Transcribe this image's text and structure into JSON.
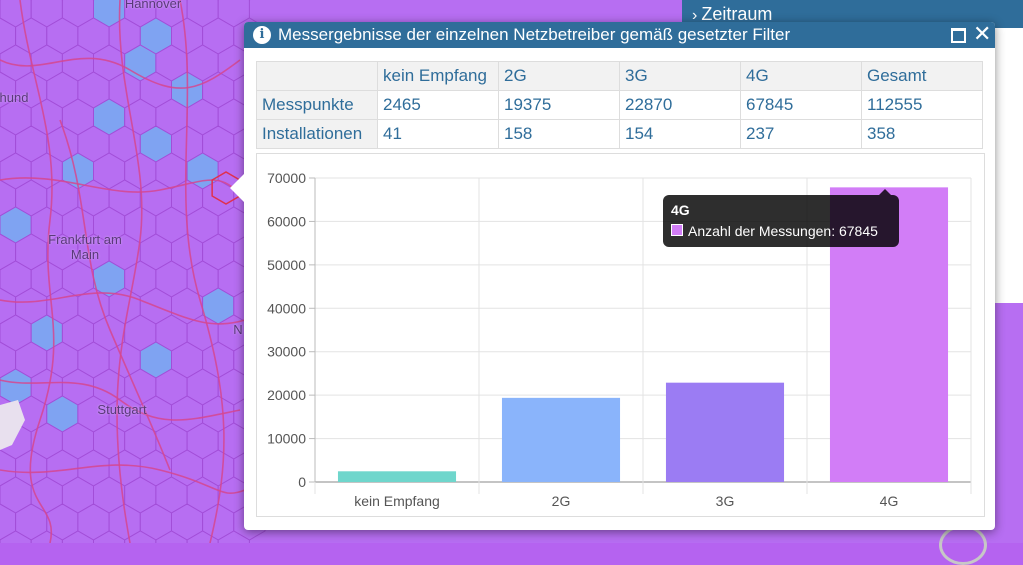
{
  "map": {
    "cities": [
      {
        "name": "Hannover"
      },
      {
        "name": "hund"
      },
      {
        "name": "Frankfurt am\nMain"
      },
      {
        "name": "Stuttgart"
      },
      {
        "name": "N"
      }
    ],
    "hex_fill": "#b76ef2",
    "hex_stroke": "#a24ed8",
    "road_color": "#d6478f",
    "blue_hex_fill": "#7fa3f2"
  },
  "side_panel": {
    "header": "Zeitraum"
  },
  "popup": {
    "title": "Messergebnisse der einzelnen Netzbetreiber gemäß gesetzter Filter",
    "info_icon": "info-icon",
    "maximize_icon": "maximize-icon",
    "close_glyph": "✕"
  },
  "table": {
    "columns": [
      "",
      "kein Empfang",
      "2G",
      "3G",
      "4G",
      "Gesamt"
    ],
    "rows": [
      {
        "label": "Messpunkte",
        "values": [
          "2465",
          "19375",
          "22870",
          "67845",
          "112555"
        ]
      },
      {
        "label": "Installationen",
        "values": [
          "41",
          "158",
          "154",
          "237",
          "358"
        ]
      }
    ]
  },
  "chart_data": {
    "type": "bar",
    "categories": [
      "kein Empfang",
      "2G",
      "3G",
      "4G"
    ],
    "values": [
      2465,
      19375,
      22870,
      67845
    ],
    "colors": [
      "#6fd6cc",
      "#8ab4fb",
      "#9b7cf3",
      "#d27df7"
    ],
    "yticks": [
      0,
      10000,
      20000,
      30000,
      40000,
      50000,
      60000,
      70000
    ],
    "ylim": [
      0,
      70000
    ],
    "grid": true,
    "title": "",
    "xlabel": "",
    "ylabel": ""
  },
  "tooltip": {
    "title": "4G",
    "label": "Anzahl der Messungen: 67845",
    "swatch_color": "#d27df7"
  }
}
